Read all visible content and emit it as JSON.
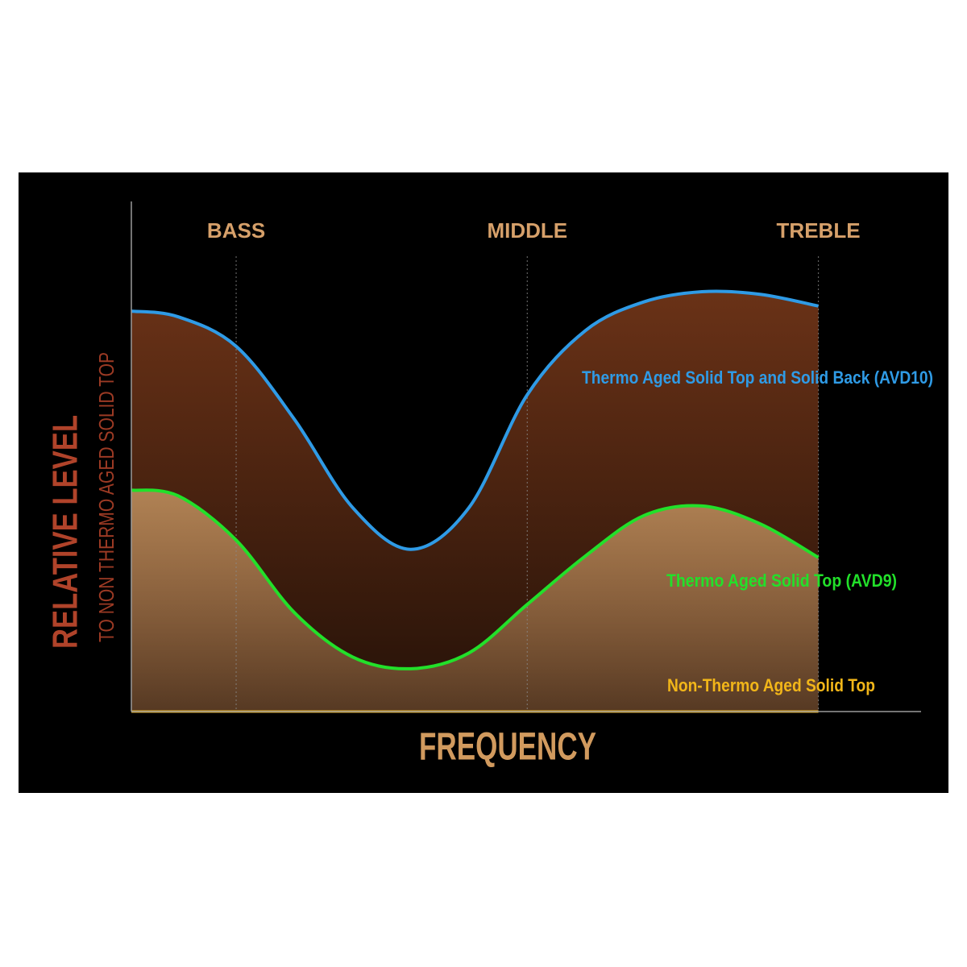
{
  "chart_data": {
    "type": "line",
    "xlabel": "FREQUENCY",
    "ylabel": "RELATIVE LEVEL",
    "ylabel_sub": "TO NON THERMO AGED SOLID TOP",
    "x": [
      0.64,
      0.8,
      1.0,
      1.2,
      1.4,
      1.6,
      1.8,
      2.0,
      2.2,
      2.4,
      2.6,
      2.8,
      3.0
    ],
    "xlim": [
      0.64,
      3.35
    ],
    "ylim": [
      0,
      10
    ],
    "xticks": [
      {
        "value": 1,
        "label": "BASS"
      },
      {
        "value": 2,
        "label": "MIDDLE"
      },
      {
        "value": 3,
        "label": "TREBLE"
      }
    ],
    "grid": true,
    "series": [
      {
        "name": "Thermo Aged Solid Top and Solid Back (AVD10)",
        "color": "#2f9be6",
        "fill": "#6a3217",
        "values": [
          7.85,
          7.74,
          7.16,
          5.73,
          4.0,
          3.18,
          4.0,
          6.21,
          7.47,
          8.03,
          8.23,
          8.18,
          7.95
        ]
      },
      {
        "name": "Thermo Aged Solid Top (AVD9)",
        "color": "#22e02a",
        "fill": "#b08254",
        "values": [
          4.34,
          4.23,
          3.36,
          1.94,
          1.07,
          0.84,
          1.15,
          2.1,
          3.05,
          3.84,
          4.03,
          3.68,
          3.02
        ]
      },
      {
        "name": "Non-Thermo Aged Solid Top",
        "color": "#f2b619",
        "values": [
          0,
          0,
          0,
          0,
          0,
          0,
          0,
          0,
          0,
          0,
          0,
          0,
          0
        ]
      }
    ]
  }
}
